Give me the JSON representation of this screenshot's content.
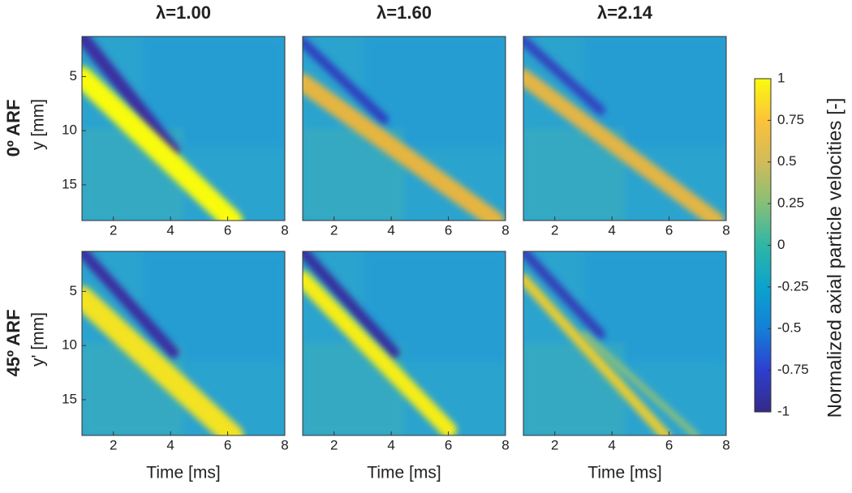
{
  "chart_data": [
    {
      "type": "heatmap",
      "title": "λ=1.00",
      "ylabel": "y [mm]",
      "xlim": [
        0.9,
        8
      ],
      "xticks": [
        2,
        4,
        6,
        8
      ],
      "ylim": [
        1.3,
        18.3
      ],
      "yticks": [
        5,
        10,
        15
      ],
      "ydir": "reverse"
    },
    {
      "type": "heatmap",
      "title": "λ=1.60",
      "xlim": [
        0.9,
        8
      ],
      "xticks": [
        2,
        4,
        6,
        8
      ],
      "ylim": [
        1.3,
        18.3
      ],
      "ydir": "reverse"
    },
    {
      "type": "heatmap",
      "title": "λ=2.14",
      "xlim": [
        0.9,
        8
      ],
      "xticks": [
        2,
        4,
        6,
        8
      ],
      "ylim": [
        1.3,
        18.3
      ],
      "ydir": "reverse"
    },
    {
      "type": "heatmap",
      "ylabel": "y' [mm]",
      "xlabel": "Time [ms]",
      "xlim": [
        0.9,
        8
      ],
      "xticks": [
        2,
        4,
        6,
        8
      ],
      "ylim": [
        1.3,
        18.3
      ],
      "yticks": [
        5,
        10,
        15
      ],
      "ydir": "reverse"
    },
    {
      "type": "heatmap",
      "xlabel": "Time [ms]",
      "xlim": [
        0.9,
        8
      ],
      "xticks": [
        2,
        4,
        6,
        8
      ],
      "ylim": [
        1.3,
        18.3
      ],
      "ydir": "reverse"
    },
    {
      "type": "heatmap",
      "xlabel": "Time [ms]",
      "xlim": [
        0.9,
        8
      ],
      "xticks": [
        2,
        4,
        6,
        8
      ],
      "ylim": [
        1.3,
        18.3
      ],
      "ydir": "reverse"
    },
    {
      "type": "colorbar",
      "label": "Normalized axial particle velocities [-]",
      "ylim": [
        -1,
        1
      ],
      "yticks": [
        1,
        0.75,
        0.5,
        0.25,
        0,
        -0.25,
        -0.5,
        -0.75,
        -1
      ],
      "colormap": [
        "#352a87",
        "#2d3fcf",
        "#1480d8",
        "#0ba3cc",
        "#2fb6a6",
        "#86bf78",
        "#d1bb59",
        "#fcc23a",
        "#f9fb0e"
      ]
    }
  ],
  "row_labels": [
    "0º ARF",
    "45º ARF"
  ]
}
